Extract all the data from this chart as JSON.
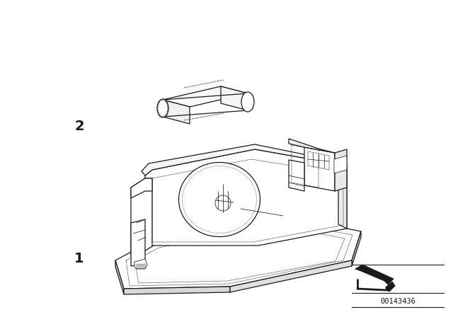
{
  "bg_color": "#ffffff",
  "line_color": "#1a1a1a",
  "label1": "1",
  "label2": "2",
  "part_num": "00143436",
  "fig_width": 6.4,
  "fig_height": 4.48,
  "dpi": 100,
  "lw_main": 0.9,
  "lw_thin": 0.55,
  "lw_dotted": 0.5
}
